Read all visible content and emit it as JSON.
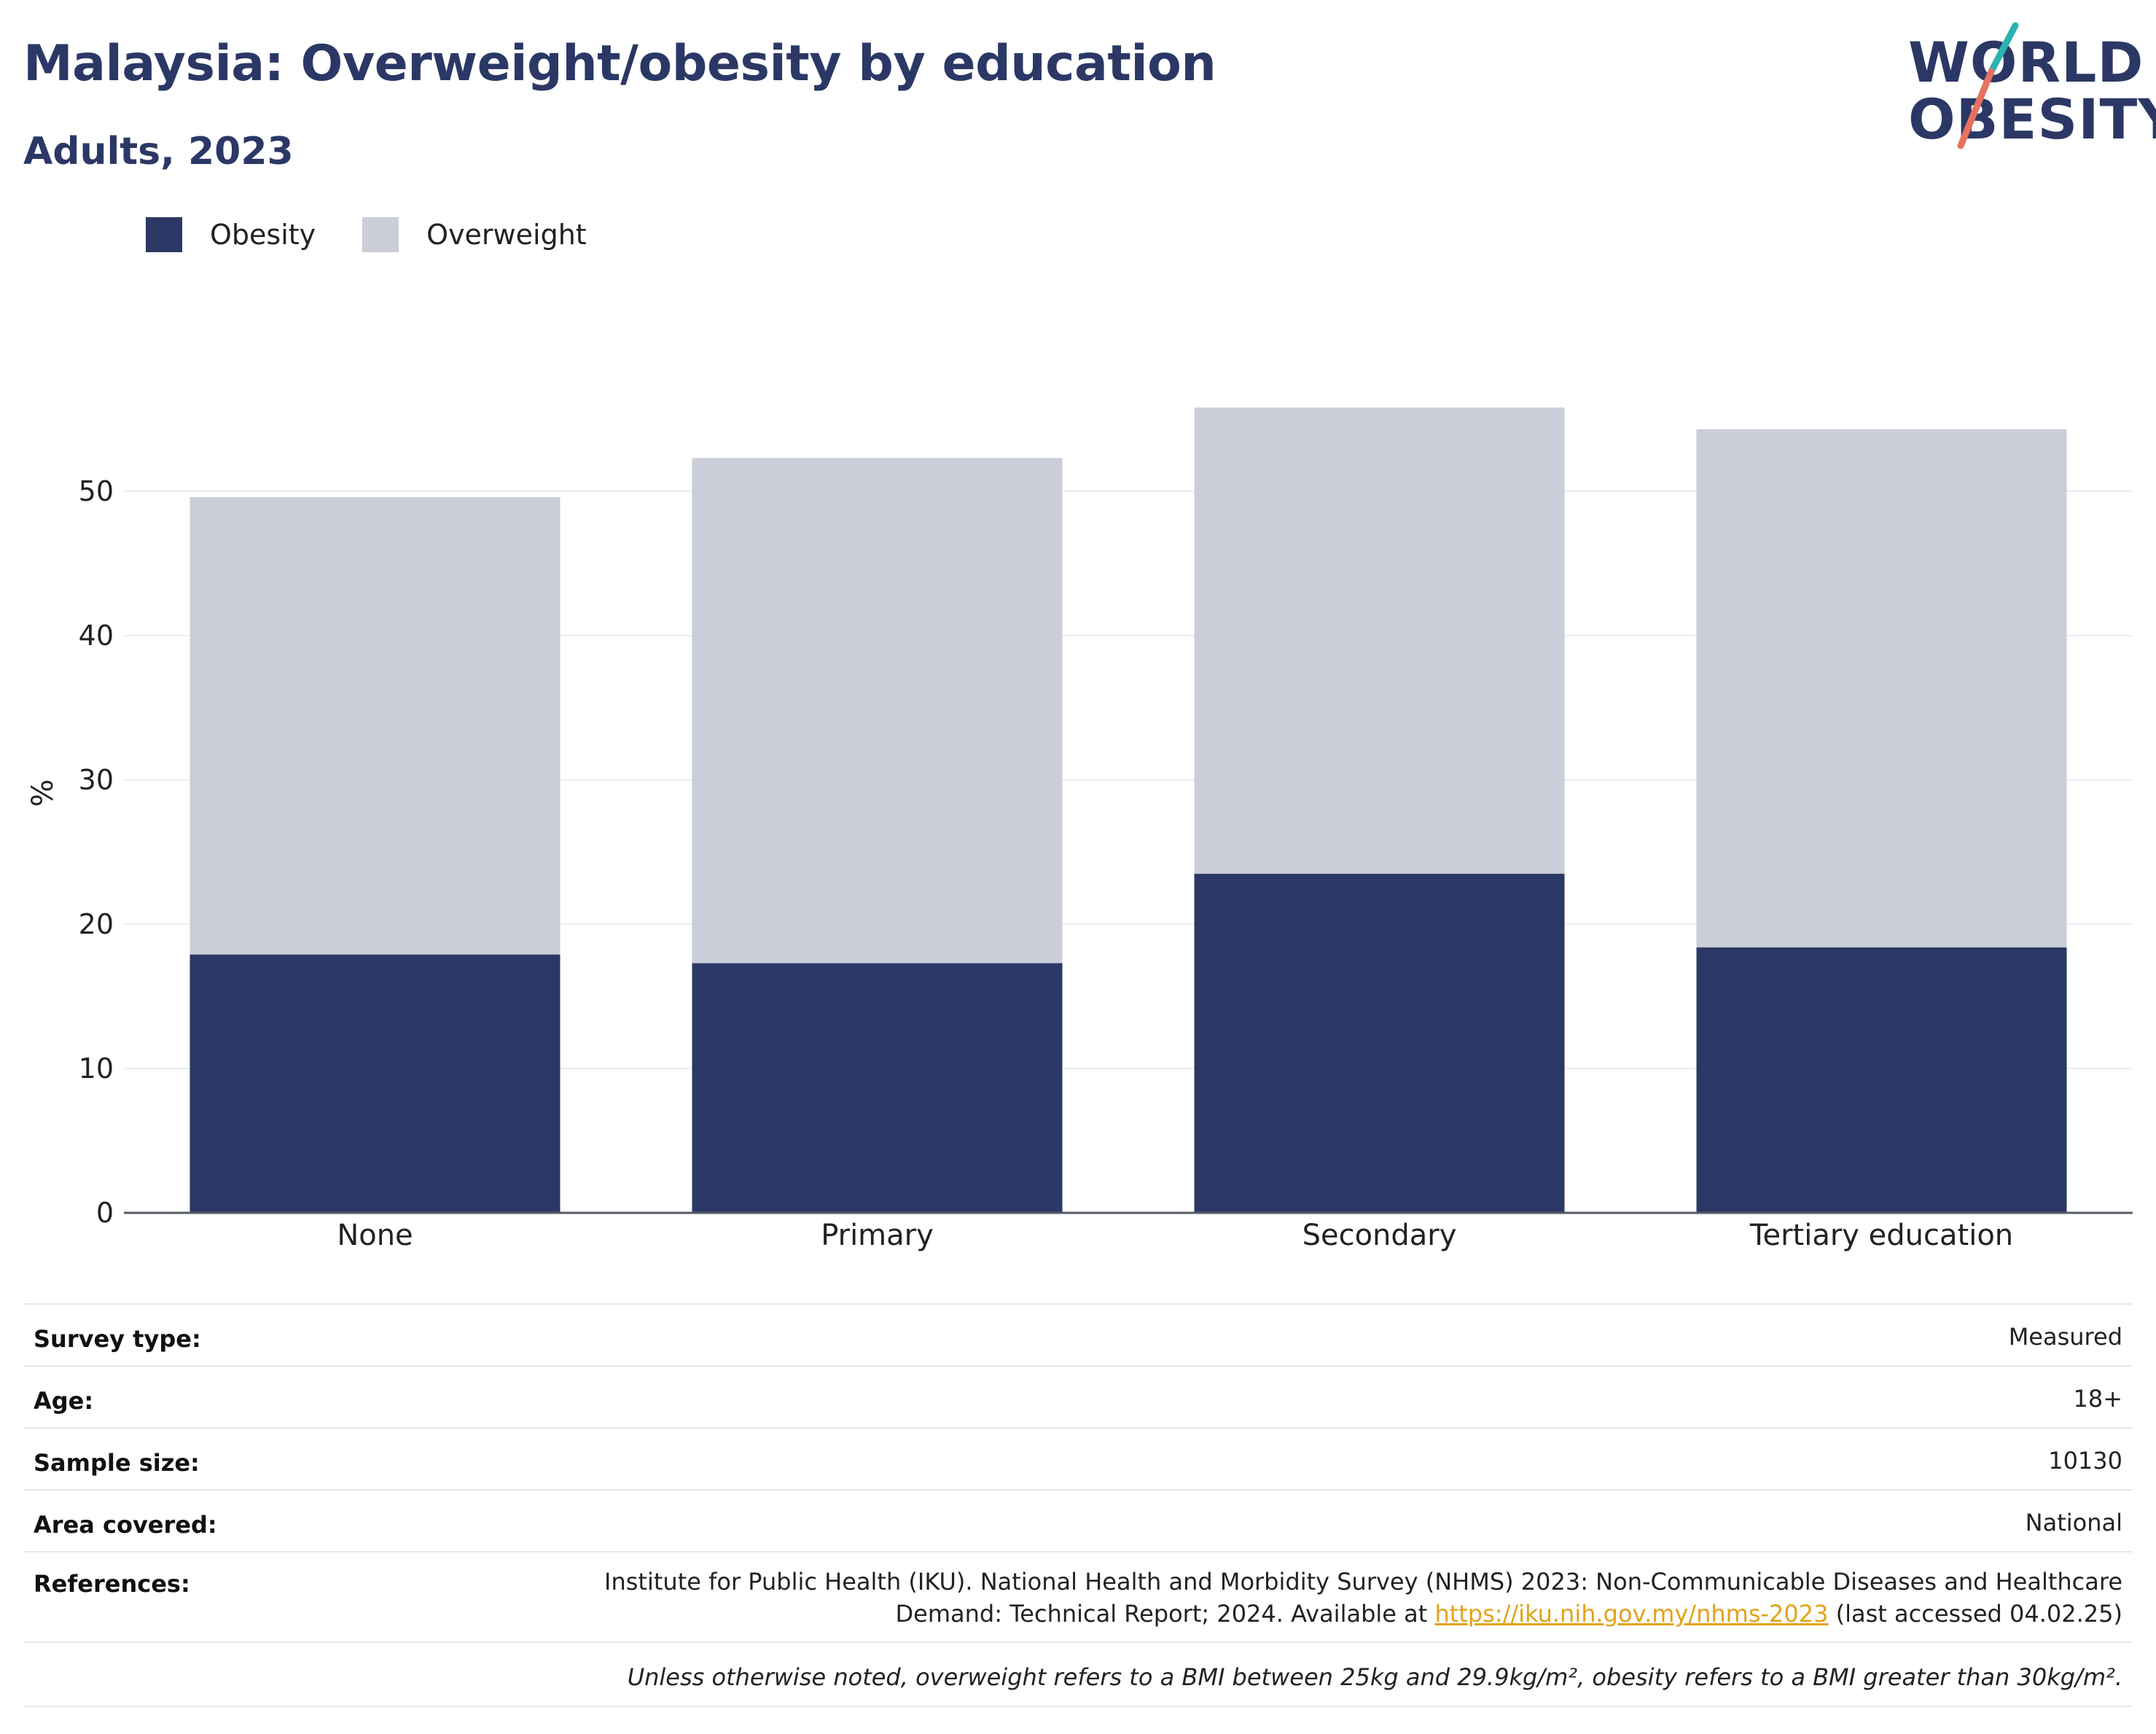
{
  "header": {
    "title": "Malaysia: Overweight/obesity by education",
    "subtitle": "Adults, 2023"
  },
  "logo": {
    "line1": "WORLD",
    "line2": "OBESITY",
    "slash_colors": [
      "#2bb3b1",
      "#e8705f"
    ]
  },
  "legend": [
    {
      "label": "Obesity",
      "color": "#2b3866"
    },
    {
      "label": "Overweight",
      "color": "#cbcdd8"
    }
  ],
  "chart_data": {
    "type": "bar",
    "stacked": true,
    "categories": [
      "None",
      "Primary",
      "Secondary",
      "Tertiary education"
    ],
    "series": [
      {
        "name": "Obesity",
        "values": [
          17.9,
          17.3,
          23.5,
          18.4
        ],
        "color": "#2b3866"
      },
      {
        "name": "Overweight",
        "values": [
          31.7,
          35.0,
          32.3,
          35.9
        ],
        "color": "#cbcdd8"
      }
    ],
    "ylabel": "%",
    "xlabel": "",
    "ylim": [
      0,
      60
    ],
    "yticks": [
      0,
      10,
      20,
      30,
      40,
      50
    ],
    "grid": true,
    "legend_position": "top-left"
  },
  "meta": {
    "survey_type": {
      "label": "Survey type:",
      "value": "Measured"
    },
    "age": {
      "label": "Age:",
      "value": "18+"
    },
    "sample_size": {
      "label": "Sample size:",
      "value": "10130"
    },
    "area": {
      "label": "Area covered:",
      "value": "National"
    },
    "references": {
      "label": "References:",
      "text_before": "Institute for Public Health (IKU). National Health and Morbidity Survey (NHMS) 2023: Non-Communicable Diseases and Healthcare Demand: Technical Report; 2024. Available at ",
      "link": "https://iku.nih.gov.my/nhms-2023",
      "text_after": " (last accessed 04.02.25)"
    },
    "note": "Unless otherwise noted, overweight refers to a BMI between 25kg and 29.9kg/m², obesity refers to a BMI greater than 30kg/m²."
  }
}
